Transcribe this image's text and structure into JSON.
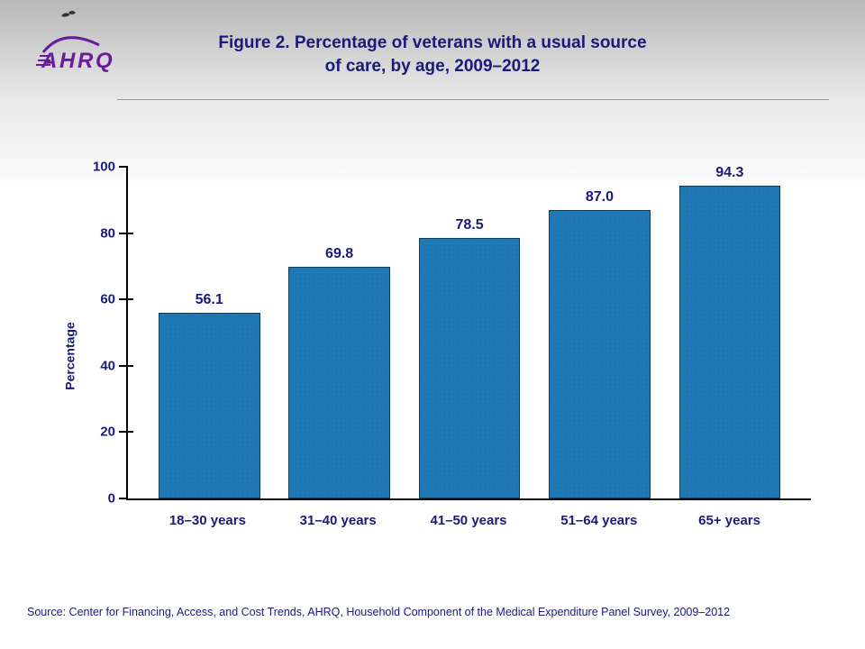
{
  "title_line1": "Figure 2. Percentage of veterans with a usual source",
  "title_line2": "of care, by age, 2009–2012",
  "logo_text": "AHRQ",
  "chart": {
    "type": "bar",
    "ylabel": "Percentage",
    "ylim": [
      0,
      100
    ],
    "yticks": [
      0,
      20,
      40,
      60,
      80,
      100
    ],
    "categories": [
      "18–30 years",
      "31–40 years",
      "41–50 years",
      "51–64 years",
      "65+ years"
    ],
    "values": [
      56.1,
      69.8,
      78.5,
      87.0,
      94.3
    ],
    "value_labels": [
      "56.1",
      "69.8",
      "78.5",
      "87.0",
      "94.3"
    ],
    "bar_color": "#1f77b4",
    "bar_border": "#0a3d62",
    "text_color": "#1a1a7a",
    "axis_color": "#000000",
    "title_fontsize": 19,
    "label_fontsize": 15,
    "value_fontsize": 16,
    "bar_width": 0.78
  },
  "source": "Source: Center for Financing, Access, and Cost Trends, AHRQ, Household Component of the Medical Expenditure Panel Survey, 2009–2012"
}
